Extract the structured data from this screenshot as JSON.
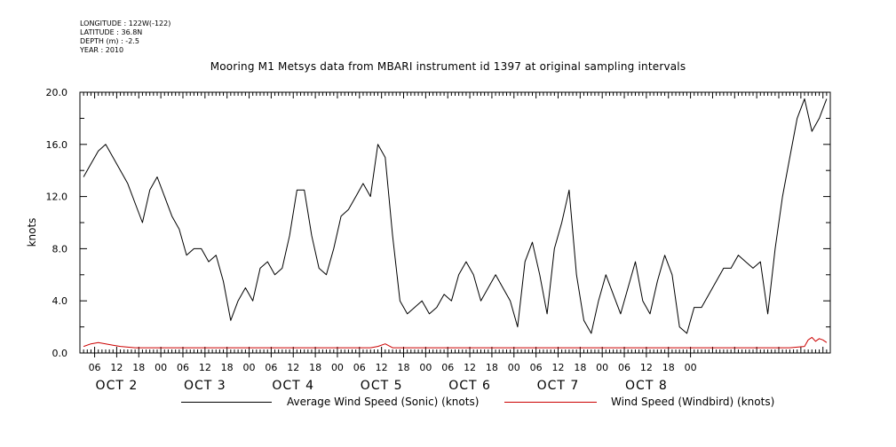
{
  "metadata": {
    "longitude": "LONGITUDE : 122W(-122)",
    "latitude": "LATITUDE : 36.8N",
    "depth": "DEPTH (m) : -2.5",
    "year": "YEAR : 2010"
  },
  "chart_data": {
    "type": "line",
    "title": "Mooring M1 Metsys data from MBARI instrument id 1397 at original sampling intervals",
    "ylabel": "knots",
    "xlabel": "",
    "ylim": [
      0,
      20
    ],
    "yticks": [
      "0.0",
      "4.0",
      "8.0",
      "12.0",
      "16.0",
      "20.0"
    ],
    "xlim_hours": [
      2,
      206
    ],
    "hour_ticks": [
      "06",
      "12",
      "18",
      "00",
      "06",
      "12",
      "18",
      "00",
      "06",
      "12",
      "18",
      "00",
      "06",
      "12",
      "18",
      "00",
      "06",
      "12",
      "18",
      "00",
      "06",
      "12",
      "18",
      "00",
      "06",
      "12",
      "18",
      "00"
    ],
    "day_labels": [
      "OCT 2",
      "OCT 3",
      "OCT 4",
      "OCT 5",
      "OCT 6",
      "OCT 7",
      "OCT 8"
    ],
    "grid": false,
    "legend_position": "bottom",
    "series": [
      {
        "name": "Average Wind Speed (Sonic) (knots)",
        "color": "#000000",
        "x": [
          3,
          5,
          7,
          9,
          11,
          13,
          15,
          17,
          19,
          21,
          23,
          25,
          27,
          29,
          31,
          33,
          35,
          37,
          39,
          41,
          43,
          45,
          47,
          49,
          51,
          53,
          55,
          57,
          59,
          61,
          63,
          65,
          67,
          69,
          71,
          73,
          75,
          77,
          79,
          81,
          83,
          85,
          87,
          89,
          91,
          93,
          95,
          97,
          99,
          101,
          103,
          105,
          107,
          109,
          111,
          113,
          115,
          117,
          119,
          121,
          123,
          125,
          127,
          129,
          131,
          133,
          135,
          137,
          139,
          141,
          143,
          145,
          147,
          149,
          151,
          153,
          155,
          157,
          159,
          161,
          163,
          165,
          167,
          169,
          171,
          173,
          175,
          177,
          179,
          181,
          183,
          185,
          187,
          189,
          191,
          193,
          195,
          197,
          199,
          201,
          203,
          205
        ],
        "values": [
          13.5,
          14.5,
          15.5,
          16.0,
          15.0,
          14.0,
          13.0,
          11.5,
          10.0,
          12.5,
          13.5,
          12.0,
          10.5,
          9.5,
          7.5,
          8.0,
          8.0,
          7.0,
          7.5,
          5.5,
          2.5,
          4.0,
          5.0,
          4.0,
          6.5,
          7.0,
          6.0,
          6.5,
          9.0,
          12.5,
          12.5,
          9.0,
          6.5,
          6.0,
          8.0,
          10.5,
          11.0,
          12.0,
          13.0,
          12.0,
          16.0,
          15.0,
          9.0,
          4.0,
          3.0,
          3.5,
          4.0,
          3.0,
          3.5,
          4.5,
          4.0,
          6.0,
          7.0,
          6.0,
          4.0,
          5.0,
          6.0,
          5.0,
          4.0,
          2.0,
          7.0,
          8.5,
          6.0,
          3.0,
          8.0,
          10.0,
          12.5,
          6.0,
          2.5,
          1.5,
          4.0,
          6.0,
          4.5,
          3.0,
          5.0,
          7.0,
          4.0,
          3.0,
          5.5,
          7.5,
          6.0,
          2.0,
          1.5,
          3.5,
          3.5,
          4.5,
          5.5,
          6.5,
          6.5,
          7.5,
          7.0,
          6.5,
          7.0,
          3.0,
          8.0,
          12.0,
          15.0,
          18.0,
          19.5,
          17.0,
          18.0,
          19.5
        ]
      },
      {
        "name": "Wind Speed (Windbird) (knots)",
        "color": "#cc0000",
        "x": [
          3,
          5,
          7,
          9,
          11,
          13,
          17,
          21,
          31,
          41,
          51,
          61,
          71,
          81,
          83,
          85,
          87,
          91,
          101,
          111,
          121,
          131,
          141,
          151,
          161,
          171,
          181,
          191,
          195,
          199,
          200,
          201,
          202,
          203,
          204,
          205
        ],
        "values": [
          0.5,
          0.7,
          0.8,
          0.7,
          0.6,
          0.5,
          0.4,
          0.4,
          0.4,
          0.4,
          0.4,
          0.4,
          0.4,
          0.4,
          0.5,
          0.7,
          0.4,
          0.4,
          0.4,
          0.4,
          0.4,
          0.4,
          0.4,
          0.4,
          0.4,
          0.4,
          0.4,
          0.4,
          0.4,
          0.5,
          1.0,
          1.2,
          0.9,
          1.1,
          1.0,
          0.8
        ]
      }
    ]
  }
}
